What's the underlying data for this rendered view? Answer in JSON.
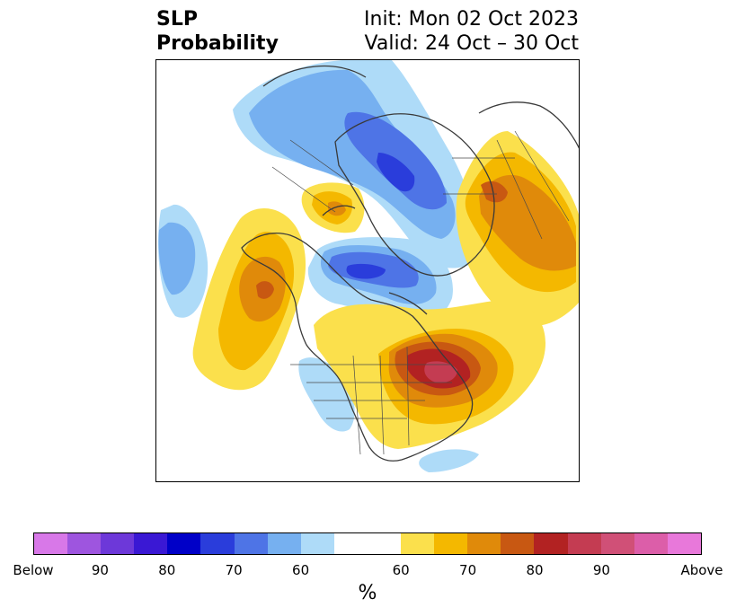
{
  "header": {
    "title_line1": "SLP",
    "title_line2": "Probability",
    "init_text": "Init: Mon 02 Oct 2023",
    "valid_text": "Valid: 24 Oct – 30 Oct"
  },
  "colorbar": {
    "unit": "%",
    "colors": [
      "#d878e8",
      "#9e55df",
      "#6d38d9",
      "#3a18d4",
      "#0000c8",
      "#2a3ddb",
      "#4e74e6",
      "#76b0f0",
      "#aedbf8",
      "#ffffff",
      "#fbe04c",
      "#f4b800",
      "#e08a0a",
      "#c85812",
      "#b22222",
      "#c43c52",
      "#d05077",
      "#dc5ea9",
      "#e878da"
    ],
    "tick_labels": [
      "Below",
      "90",
      "80",
      "70",
      "60",
      "60",
      "70",
      "80",
      "90",
      "Above"
    ]
  },
  "map": {
    "projection": "polar-stereographic",
    "anomaly_regions": [
      {
        "name": "eastern-north-america-above",
        "category": "Above 80-90"
      },
      {
        "name": "western-russia-above",
        "category": "Above 70"
      },
      {
        "name": "gulf-of-alaska-above",
        "category": "Above 70-80"
      },
      {
        "name": "arctic-ocean-below",
        "category": "Below 70-80"
      },
      {
        "name": "northern-europe-below",
        "category": "Below 70"
      },
      {
        "name": "north-pacific-below",
        "category": "Below 60"
      },
      {
        "name": "central-us-below",
        "category": "Below 60"
      }
    ]
  }
}
